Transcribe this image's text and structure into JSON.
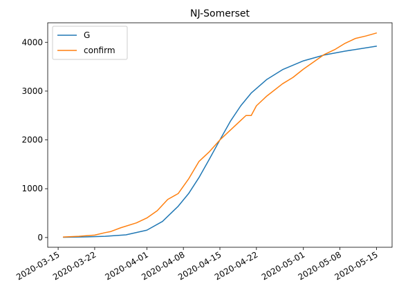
{
  "chart_data": {
    "type": "line",
    "title": "NJ-Somerset",
    "xlabel": "",
    "ylabel": "",
    "xlim": [
      "2020-03-13",
      "2020-05-18"
    ],
    "ylim": [
      -200,
      4400
    ],
    "grid": false,
    "legend_position": "top-left",
    "x_ticks": [
      "2020-03-15",
      "2020-03-22",
      "2020-04-01",
      "2020-04-08",
      "2020-04-15",
      "2020-04-22",
      "2020-05-01",
      "2020-05-08",
      "2020-05-15"
    ],
    "y_ticks": [
      0,
      1000,
      2000,
      3000,
      4000
    ],
    "series": [
      {
        "name": "G",
        "color": "#1f77b4",
        "points": [
          [
            "2020-03-16",
            5
          ],
          [
            "2020-03-20",
            12
          ],
          [
            "2020-03-24",
            25
          ],
          [
            "2020-03-28",
            55
          ],
          [
            "2020-04-01",
            150
          ],
          [
            "2020-04-04",
            330
          ],
          [
            "2020-04-07",
            640
          ],
          [
            "2020-04-09",
            900
          ],
          [
            "2020-04-11",
            1230
          ],
          [
            "2020-04-13",
            1610
          ],
          [
            "2020-04-15",
            2000
          ],
          [
            "2020-04-17",
            2380
          ],
          [
            "2020-04-19",
            2700
          ],
          [
            "2020-04-21",
            2960
          ],
          [
            "2020-04-24",
            3240
          ],
          [
            "2020-04-27",
            3440
          ],
          [
            "2020-05-01",
            3620
          ],
          [
            "2020-05-05",
            3740
          ],
          [
            "2020-05-09",
            3820
          ],
          [
            "2020-05-15",
            3920
          ]
        ]
      },
      {
        "name": "confirm",
        "color": "#ff7f0e",
        "points": [
          [
            "2020-03-16",
            10
          ],
          [
            "2020-03-19",
            25
          ],
          [
            "2020-03-22",
            50
          ],
          [
            "2020-03-24",
            100
          ],
          [
            "2020-03-25",
            120
          ],
          [
            "2020-03-27",
            200
          ],
          [
            "2020-03-30",
            300
          ],
          [
            "2020-04-01",
            400
          ],
          [
            "2020-04-03",
            550
          ],
          [
            "2020-04-05",
            780
          ],
          [
            "2020-04-07",
            900
          ],
          [
            "2020-04-09",
            1200
          ],
          [
            "2020-04-11",
            1560
          ],
          [
            "2020-04-13",
            1760
          ],
          [
            "2020-04-15",
            2000
          ],
          [
            "2020-04-17",
            2200
          ],
          [
            "2020-04-19",
            2400
          ],
          [
            "2020-04-20",
            2500
          ],
          [
            "2020-04-21",
            2500
          ],
          [
            "2020-04-22",
            2700
          ],
          [
            "2020-04-24",
            2900
          ],
          [
            "2020-04-27",
            3150
          ],
          [
            "2020-04-29",
            3280
          ],
          [
            "2020-05-01",
            3450
          ],
          [
            "2020-05-03",
            3600
          ],
          [
            "2020-05-05",
            3750
          ],
          [
            "2020-05-07",
            3850
          ],
          [
            "2020-05-09",
            3980
          ],
          [
            "2020-05-11",
            4080
          ],
          [
            "2020-05-13",
            4130
          ],
          [
            "2020-05-15",
            4190
          ]
        ]
      }
    ]
  }
}
